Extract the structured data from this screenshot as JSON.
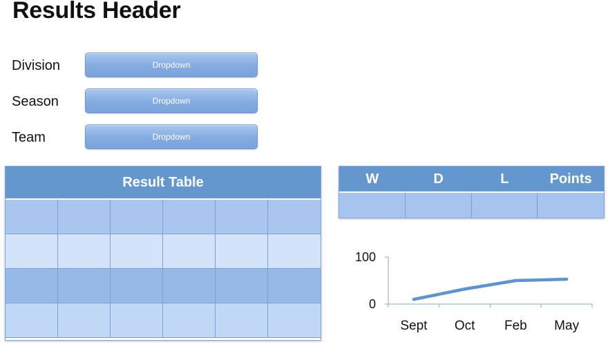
{
  "header": {
    "title": "Results Header"
  },
  "filters": [
    {
      "label": "Division",
      "dropdown": "Dropdown"
    },
    {
      "label": "Season",
      "dropdown": "Dropdown"
    },
    {
      "label": "Team",
      "dropdown": "Dropdown"
    }
  ],
  "result_table": {
    "title": "Result Table",
    "rows": 4,
    "columns": 6
  },
  "wdl_table": {
    "headers": [
      "W",
      "D",
      "L",
      "Points"
    ]
  },
  "colors": {
    "accent": "#6497cd",
    "dropdown": "#84abe1",
    "line": "#5b93d3"
  },
  "chart_data": {
    "type": "line",
    "categories": [
      "Sept",
      "Oct",
      "Feb",
      "May"
    ],
    "series": [
      {
        "values": [
          10,
          32,
          50,
          53
        ]
      }
    ],
    "ylim": [
      0,
      100
    ],
    "yticks": [
      "0",
      "100"
    ],
    "grid": false,
    "title": "",
    "xlabel": "",
    "ylabel": ""
  }
}
